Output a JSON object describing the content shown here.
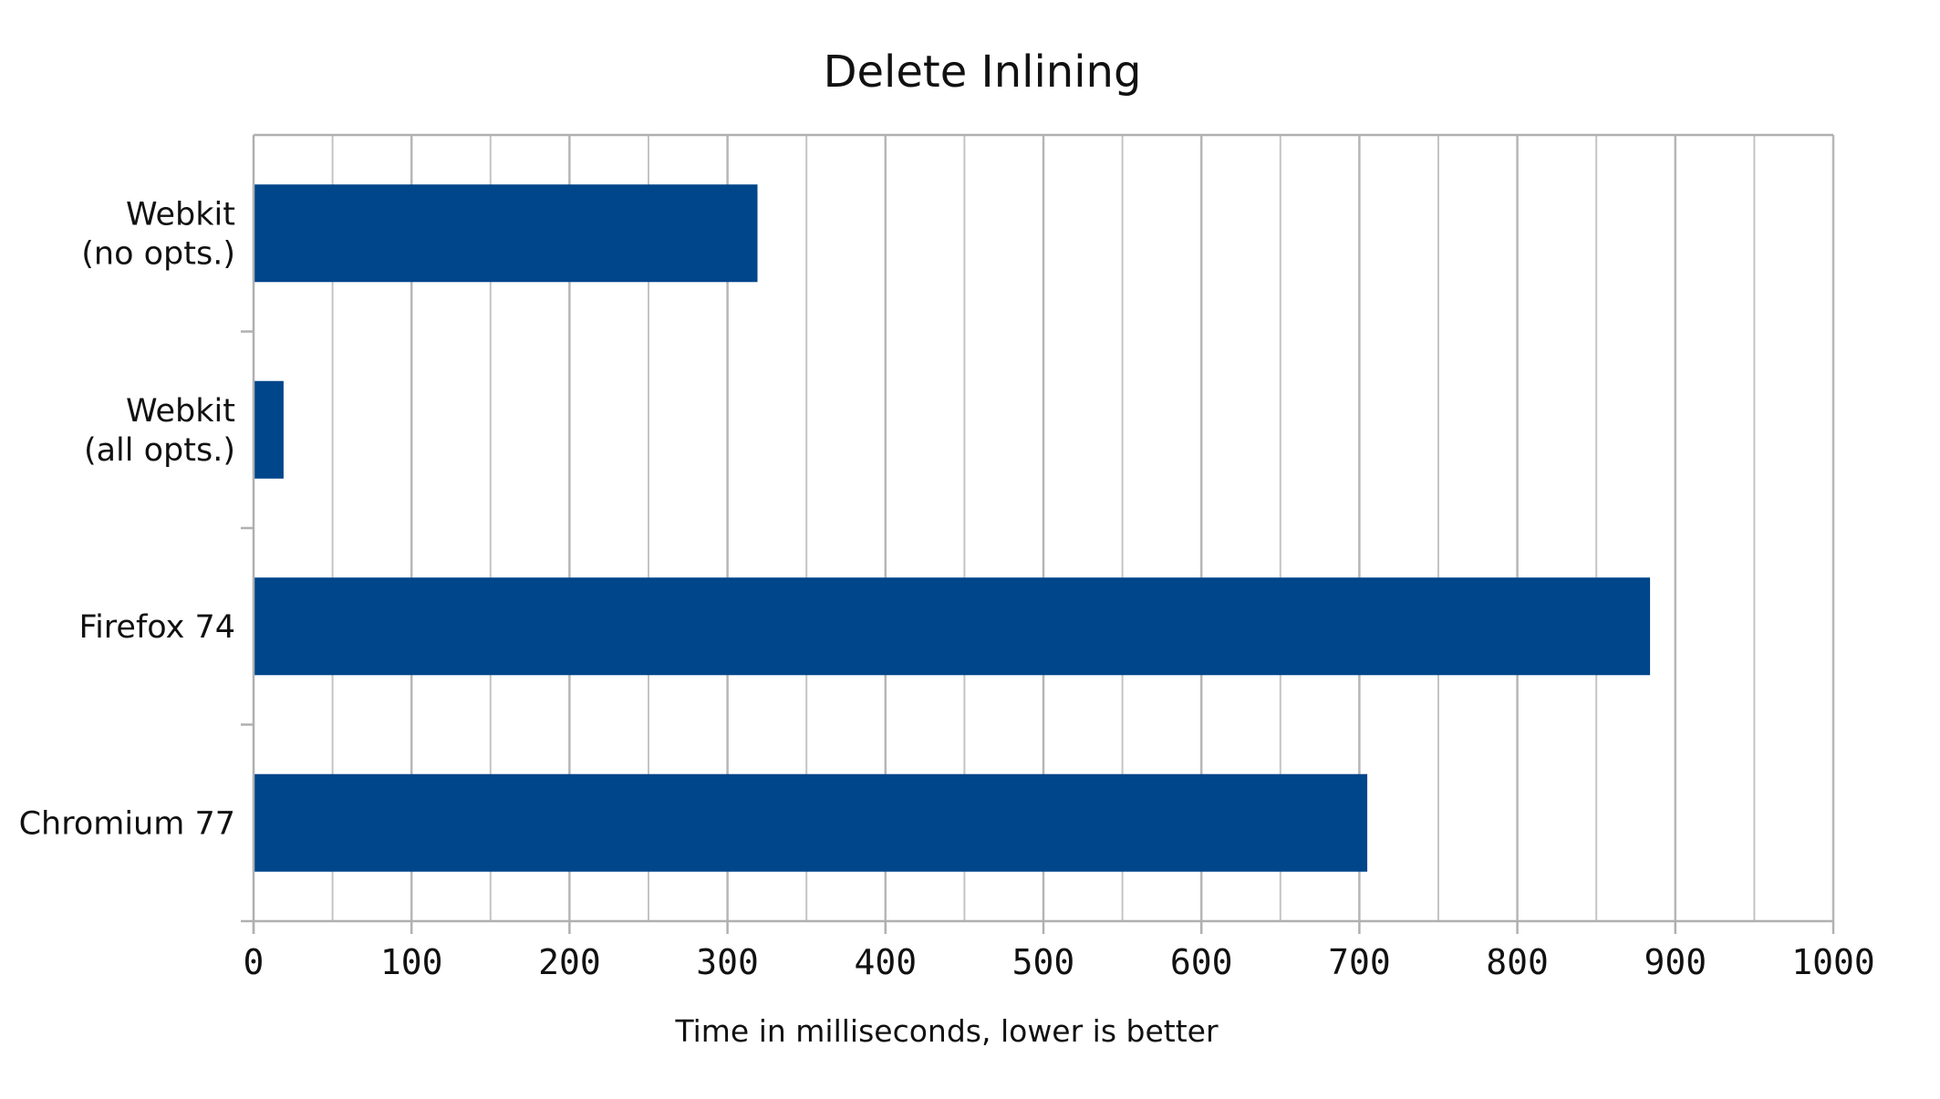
{
  "chart_data": {
    "type": "bar",
    "orientation": "horizontal",
    "title": "Delete Inlining",
    "xlabel": "Time in milliseconds, lower is better",
    "ylabel": "",
    "categories": [
      [
        "Webkit",
        "(no opts.)"
      ],
      [
        "Webkit",
        "(all opts.)"
      ],
      [
        "Firefox 74"
      ],
      [
        "Chromium 77"
      ]
    ],
    "values": [
      319,
      19,
      884,
      705
    ],
    "xlim": [
      0,
      1000
    ],
    "xticks": [
      0,
      100,
      200,
      300,
      400,
      500,
      600,
      700,
      800,
      900,
      1000
    ],
    "minor_gridlines_step": 50,
    "grid": true,
    "legend": "none",
    "bar_color": "#00468a",
    "grid_color": "#c4c4c4",
    "major_grid_color": "#b6b6b6",
    "axis_color": "#b0b0b0"
  }
}
